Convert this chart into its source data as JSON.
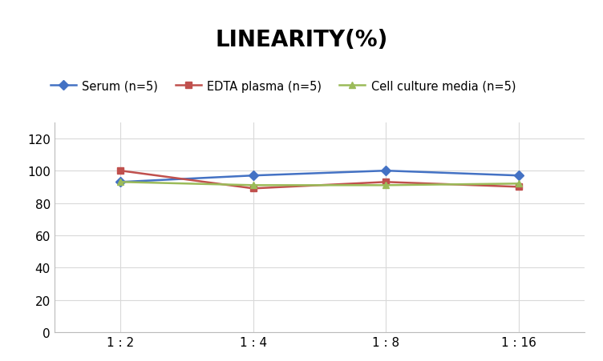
{
  "title": "LINEARITY(%)",
  "x_labels": [
    "1 : 2",
    "1 : 4",
    "1 : 8",
    "1 : 16"
  ],
  "x_positions": [
    0,
    1,
    2,
    3
  ],
  "series": [
    {
      "label": "Serum (n=5)",
      "values": [
        93,
        97,
        100,
        97
      ],
      "color": "#4472C4",
      "marker": "D",
      "marker_size": 6,
      "linewidth": 1.8
    },
    {
      "label": "EDTA plasma (n=5)",
      "values": [
        100,
        89,
        93,
        90
      ],
      "color": "#C0504D",
      "marker": "s",
      "marker_size": 6,
      "linewidth": 1.8
    },
    {
      "label": "Cell culture media (n=5)",
      "values": [
        93,
        91,
        91,
        92
      ],
      "color": "#9BBB59",
      "marker": "^",
      "marker_size": 6,
      "linewidth": 1.8
    }
  ],
  "ylim": [
    0,
    130
  ],
  "yticks": [
    0,
    20,
    40,
    60,
    80,
    100,
    120
  ],
  "grid_color": "#D9D9D9",
  "background_color": "#FFFFFF",
  "title_fontsize": 20,
  "title_fontweight": "bold",
  "legend_fontsize": 10.5,
  "tick_fontsize": 11
}
